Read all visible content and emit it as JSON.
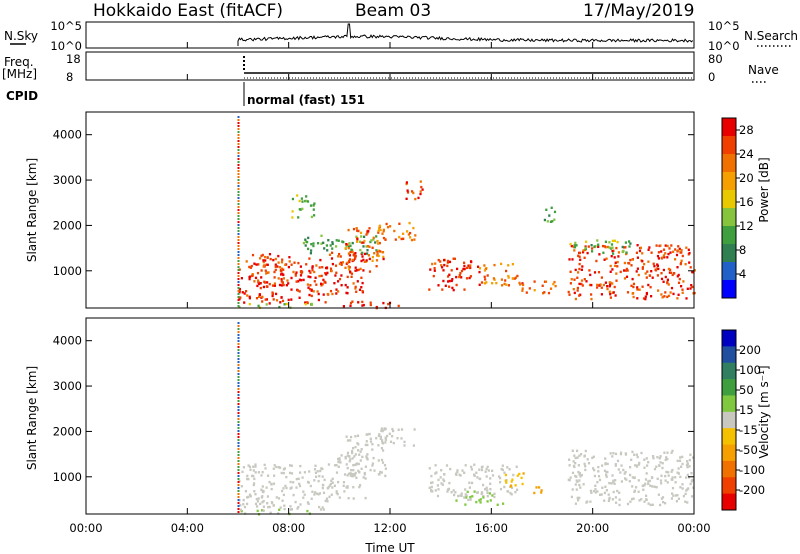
{
  "header": {
    "station": "Hokkaido East (fitACF)",
    "beam": "Beam 03",
    "date": "17/May/2019"
  },
  "top_panels": {
    "nsky_label": "N.Sky",
    "nsky_ticks": [
      "10^5",
      "10^0"
    ],
    "nsearch_label": "N.Search",
    "nsearch_ticks": [
      "10^5",
      "10^0"
    ],
    "freq_label": "Freq.",
    "freq_unit": "[MHz]",
    "freq_ticks": [
      "18",
      "8"
    ],
    "nave_label": "Nave",
    "nave_ticks": [
      "80",
      "0"
    ],
    "cpid_label": "CPID",
    "cpid_value": "normal (fast) 151"
  },
  "colors": {
    "power": [
      "#0000ff",
      "#2060c8",
      "#2f7f50",
      "#3f9f3f",
      "#86c43e",
      "#e8c800",
      "#f5a000",
      "#f07000",
      "#f04000",
      "#e80000"
    ],
    "velocity": [
      "#e80000",
      "#f04000",
      "#f07000",
      "#f5a000",
      "#f5c000",
      "#c8c8c0",
      "#80c840",
      "#3f9f3f",
      "#2f7f60",
      "#204fa0",
      "#0000c0"
    ],
    "ground": "#a0a0a0"
  },
  "chart_data": [
    {
      "type": "heatmap",
      "name": "power-panel",
      "xlabel": "",
      "ylabel": "Slant Range [km]",
      "yticks": [
        "1000",
        "2000",
        "3000",
        "4000"
      ],
      "ylim": [
        180,
        4500
      ],
      "xlim": [
        0,
        24
      ],
      "colorbar": {
        "label": "Power [dB]",
        "ticks": [
          "4",
          "8",
          "12",
          "16",
          "20",
          "24",
          "28"
        ],
        "range": [
          0,
          30
        ]
      },
      "data_start_hour": 6,
      "regions": [
        {
          "t": [
            6.0,
            9.5
          ],
          "r": [
            300,
            1300
          ],
          "level": 27
        },
        {
          "t": [
            6.5,
            8.0
          ],
          "r": [
            700,
            1400
          ],
          "level": 25
        },
        {
          "t": [
            9.5,
            11.0
          ],
          "r": [
            500,
            1500
          ],
          "level": 27
        },
        {
          "t": [
            8.5,
            11.5
          ],
          "r": [
            1400,
            1800
          ],
          "level": 10
        },
        {
          "t": [
            10.2,
            11.8
          ],
          "r": [
            1000,
            2000
          ],
          "level": 24
        },
        {
          "t": [
            11.5,
            13.0
          ],
          "r": [
            1700,
            2100
          ],
          "level": 22
        },
        {
          "t": [
            12.5,
            13.3
          ],
          "r": [
            2600,
            3000
          ],
          "level": 26
        },
        {
          "t": [
            13.5,
            15.5
          ],
          "r": [
            600,
            1300
          ],
          "level": 27
        },
        {
          "t": [
            15.5,
            17.0
          ],
          "r": [
            700,
            1200
          ],
          "level": 22
        },
        {
          "t": [
            17.0,
            18.5
          ],
          "r": [
            500,
            800
          ],
          "level": 24
        },
        {
          "t": [
            8.0,
            9.0
          ],
          "r": [
            2200,
            2700
          ],
          "level": 13
        },
        {
          "t": [
            18.0,
            18.5
          ],
          "r": [
            2100,
            2500
          ],
          "level": 10
        },
        {
          "t": [
            19.0,
            24.0
          ],
          "r": [
            400,
            1600
          ],
          "level": 26
        },
        {
          "t": [
            19.0,
            21.5
          ],
          "r": [
            1400,
            1700
          ],
          "level": 12
        },
        {
          "t": [
            10.0,
            12.5
          ],
          "r": [
            200,
            350
          ],
          "level": 28
        },
        {
          "t": [
            6.0,
            9.0
          ],
          "r": [
            200,
            300
          ],
          "level": 13
        }
      ]
    },
    {
      "type": "heatmap",
      "name": "velocity-panel",
      "xlabel": "Time UT",
      "ylabel": "Slant Range [km]",
      "xticks": [
        "00:00",
        "04:00",
        "08:00",
        "12:00",
        "16:00",
        "20:00",
        "00:00"
      ],
      "yticks": [
        "1000",
        "2000",
        "3000",
        "4000"
      ],
      "ylim": [
        180,
        4500
      ],
      "xlim": [
        0,
        24
      ],
      "colorbar": {
        "label": "Velocity [m s⁻¹]",
        "ticks": [
          "200",
          "100",
          "50",
          "15",
          "-15",
          "-50",
          "-100",
          "-200"
        ],
        "range": [
          -250,
          250
        ]
      },
      "data_start_hour": 6,
      "regions": [
        {
          "t": [
            6.0,
            9.5
          ],
          "r": [
            300,
            1300
          ],
          "level": 0
        },
        {
          "t": [
            9.5,
            11.0
          ],
          "r": [
            500,
            1500
          ],
          "level": 0
        },
        {
          "t": [
            10.2,
            11.8
          ],
          "r": [
            1000,
            2000
          ],
          "level": 0
        },
        {
          "t": [
            11.5,
            13.0
          ],
          "r": [
            1700,
            2100
          ],
          "level": 0
        },
        {
          "t": [
            13.5,
            17.0
          ],
          "r": [
            600,
            1300
          ],
          "level": 0
        },
        {
          "t": [
            16.5,
            17.5
          ],
          "r": [
            800,
            1100
          ],
          "level": -60
        },
        {
          "t": [
            17.6,
            18.3
          ],
          "r": [
            650,
            800
          ],
          "level": -90
        },
        {
          "t": [
            19.0,
            24.0
          ],
          "r": [
            400,
            1600
          ],
          "level": 0
        },
        {
          "t": [
            14.5,
            16.5
          ],
          "r": [
            400,
            700
          ],
          "level": 30
        },
        {
          "t": [
            6.0,
            9.0
          ],
          "r": [
            200,
            300
          ],
          "level": 30
        }
      ]
    }
  ]
}
